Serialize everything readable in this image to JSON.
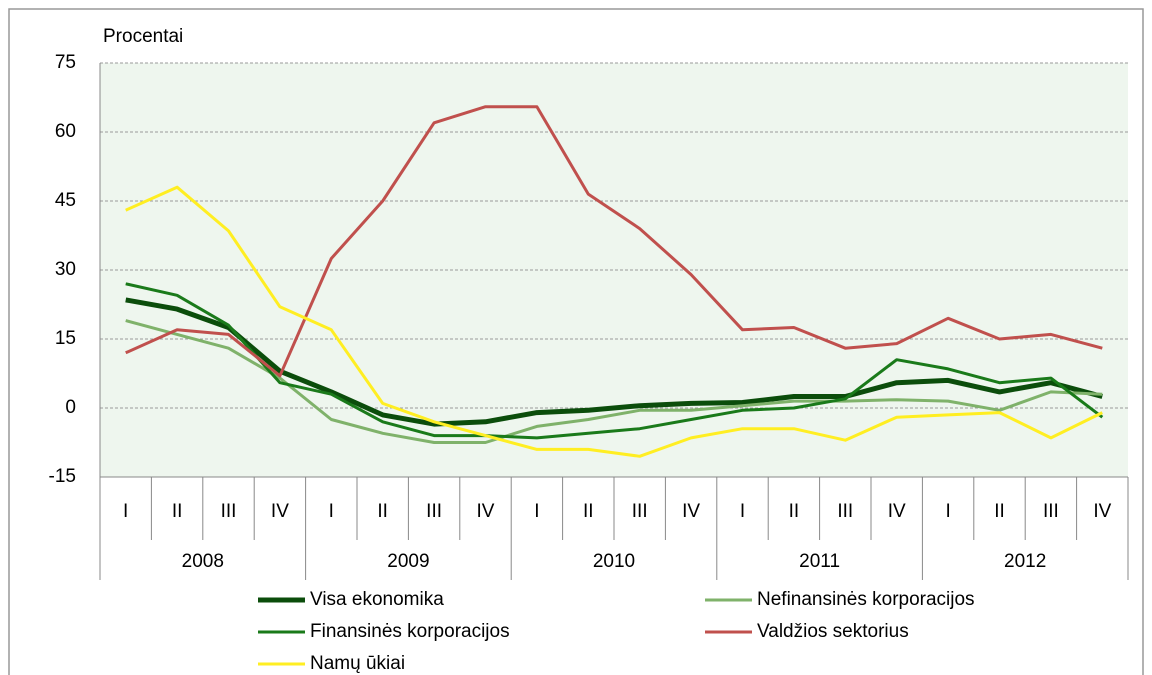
{
  "chart_data": {
    "type": "line",
    "y_label": "Procentai",
    "categories": [
      "I",
      "II",
      "III",
      "IV",
      "I",
      "II",
      "III",
      "IV",
      "I",
      "II",
      "III",
      "IV",
      "I",
      "II",
      "III",
      "IV",
      "I",
      "II",
      "III",
      "IV"
    ],
    "years": [
      "2008",
      "2009",
      "2010",
      "2011",
      "2012"
    ],
    "ylim": [
      -15,
      75
    ],
    "yticks": [
      -15,
      0,
      15,
      30,
      45,
      60,
      75
    ],
    "grid": true,
    "series": [
      {
        "name": "Visa ekonomika",
        "color": "#0b4d0b",
        "width": 5,
        "values": [
          23.5,
          21.5,
          17.5,
          8,
          3.5,
          -1.5,
          -3.5,
          -3,
          -1,
          -0.5,
          0.5,
          1,
          1.2,
          2.5,
          2.5,
          5.5,
          6,
          3.5,
          5.5,
          2.5
        ]
      },
      {
        "name": "Nefinansinės korporacijos",
        "color": "#7fb26a",
        "width": 3,
        "values": [
          19,
          16,
          13,
          6.5,
          -2.5,
          -5.5,
          -7.5,
          -7.5,
          -4,
          -2.5,
          -0.5,
          -0.5,
          0.5,
          1.5,
          1.5,
          1.8,
          1.5,
          -0.5,
          3.5,
          3
        ]
      },
      {
        "name": "Finansinės korporacijos",
        "color": "#1a7a1a",
        "width": 3,
        "values": [
          27,
          24.5,
          18,
          5.5,
          3,
          -3,
          -6,
          -6,
          -6.5,
          -5.5,
          -4.5,
          -2.5,
          -0.5,
          0,
          2,
          10.5,
          8.5,
          5.5,
          6.5,
          -2
        ]
      },
      {
        "name": "Valdžios sektorius",
        "color": "#c0504d",
        "width": 3,
        "values": [
          12,
          17,
          16,
          7,
          32.5,
          45,
          62,
          65.5,
          65.5,
          46.5,
          39,
          29,
          17,
          17.5,
          13,
          14,
          19.5,
          15,
          16,
          13
        ]
      },
      {
        "name": "Namų ūkiai",
        "color": "#ffee22",
        "width": 3,
        "values": [
          43,
          48,
          38.5,
          22,
          17,
          1,
          -3,
          -6,
          -9,
          -9,
          -10.5,
          -6.5,
          -4.5,
          -4.5,
          -7,
          -2,
          -1.5,
          -1,
          -6.5,
          -1
        ]
      }
    ]
  }
}
